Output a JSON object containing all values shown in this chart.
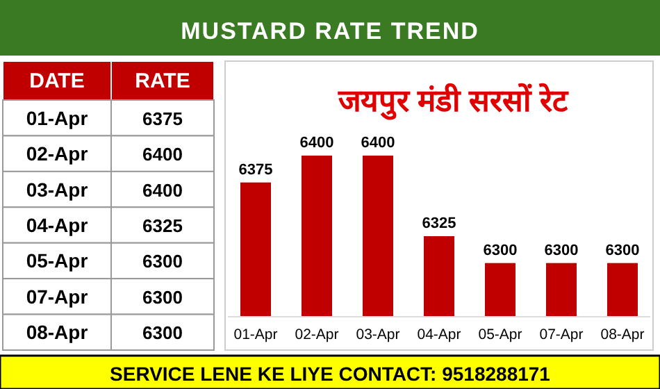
{
  "chart_data": [
    {
      "type": "other",
      "categories": [
        "01-Apr",
        "02-Apr",
        "03-Apr",
        "04-Apr",
        "05-Apr",
        "07-Apr",
        "08-Apr"
      ],
      "values": [
        6375,
        6400,
        6400,
        6325,
        6300,
        6300,
        6300
      ],
      "data_labels": true,
      "annotations": [
        "DATE",
        "RATE"
      ]
    },
    {
      "type": "bar",
      "title": "जयपुर मंडी सरसों रेट",
      "subtitle": "MUSTARD RATE TREND",
      "categories": [
        "01-Apr",
        "02-Apr",
        "03-Apr",
        "04-Apr",
        "05-Apr",
        "07-Apr",
        "08-Apr"
      ],
      "values": [
        6375,
        6400,
        6400,
        6325,
        6300,
        6300,
        6300
      ],
      "color": "#c00000",
      "data_labels": true,
      "ylim": [
        6250,
        6400
      ],
      "annotations": [
        "SERVICE LENE KE LIYE CONTACT: 9518288171"
      ]
    }
  ]
}
